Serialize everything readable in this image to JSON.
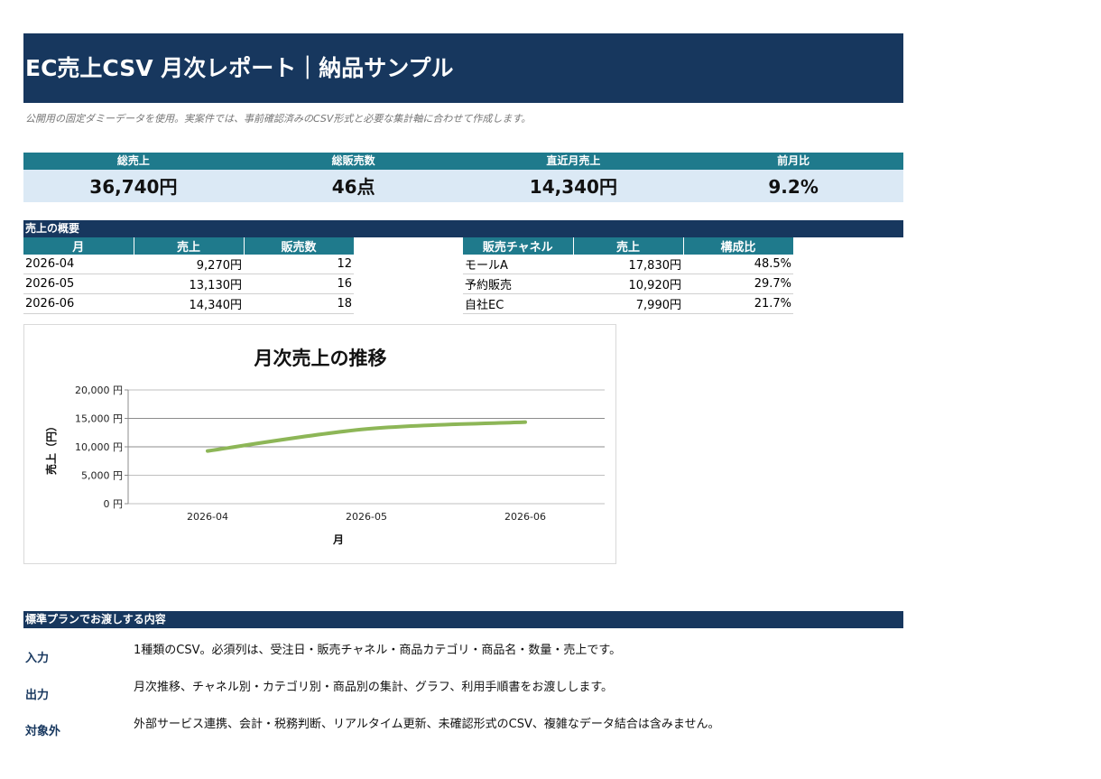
{
  "header": {
    "title": "EC売上CSV 月次レポート｜納品サンプル",
    "note": "公開用の固定ダミーデータを使用。実案件では、事前確認済みのCSV形式と必要な集計軸に合わせて作成します。"
  },
  "kpis": [
    {
      "label": "総売上",
      "value": "36,740円"
    },
    {
      "label": "総販売数",
      "value": "46点"
    },
    {
      "label": "直近月売上",
      "value": "14,340円"
    },
    {
      "label": "前月比",
      "value": "9.2%"
    }
  ],
  "summary": {
    "title": "売上の概要",
    "monthly": {
      "headers": [
        "月",
        "売上",
        "販売数"
      ],
      "rows": [
        [
          "2026-04",
          "9,270円",
          "12"
        ],
        [
          "2026-05",
          "13,130円",
          "16"
        ],
        [
          "2026-06",
          "14,340円",
          "18"
        ]
      ]
    },
    "channels": {
      "headers": [
        "販売チャネル",
        "売上",
        "構成比"
      ],
      "rows": [
        [
          "モールA",
          "17,830円",
          "48.5%"
        ],
        [
          "予約販売",
          "10,920円",
          "29.7%"
        ],
        [
          "自社EC",
          "7,990円",
          "21.7%"
        ]
      ]
    }
  },
  "chart_data": {
    "type": "line",
    "title": "月次売上の推移",
    "xlabel": "月",
    "ylabel": "売上（円）",
    "categories": [
      "2026-04",
      "2026-05",
      "2026-06"
    ],
    "series": [
      {
        "values": [
          9270,
          13130,
          14340
        ],
        "color": "#8db657"
      }
    ],
    "ylim": [
      0,
      20000
    ],
    "yticks": [
      "20,000 円",
      "15,000 円",
      "10,000 円",
      "5,000 円",
      "0 円"
    ],
    "grid": true,
    "smooth": true
  },
  "plan": {
    "title": "標準プランでお渡しする内容",
    "items": [
      {
        "label": "入力",
        "text": "1種類のCSV。必須列は、受注日・販売チャネル・商品カテゴリ・商品名・数量・売上です。"
      },
      {
        "label": "出力",
        "text": "月次推移、チャネル別・カテゴリ別・商品別の集計、グラフ、利用手順書をお渡しします。"
      },
      {
        "label": "対象外",
        "text": "外部サービス連携、会計・税務判断、リアルタイム更新、未確認形式のCSV、複雑なデータ結合は含みません。"
      }
    ]
  },
  "colors": {
    "navy": "#17375e",
    "teal": "#1f7a8c",
    "light_blue": "#dbe9f5",
    "line_green": "#8db657"
  }
}
